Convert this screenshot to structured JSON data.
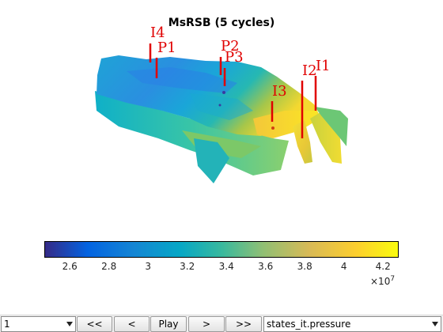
{
  "figure": {
    "title": "MsRSB (5 cycles)",
    "wells": [
      {
        "name": "I4"
      },
      {
        "name": "P1"
      },
      {
        "name": "P2"
      },
      {
        "name": "P3"
      },
      {
        "name": "I3"
      },
      {
        "name": "I2"
      },
      {
        "name": "I1"
      }
    ],
    "well_color": "#e00000"
  },
  "colorbar": {
    "colormap": "parula",
    "range": [
      2.47,
      4.28
    ],
    "ticks": [
      "2.6",
      "2.8",
      "3",
      "3.2",
      "3.4",
      "3.6",
      "3.8",
      "4",
      "4.2"
    ],
    "exponent_base": "×10",
    "exponent_power": "7"
  },
  "controls": {
    "step_select_value": "1",
    "first_label": "<<",
    "prev_label": "<",
    "play_label": "Play",
    "next_label": ">",
    "last_label": ">>",
    "field_select_value": "states_it.pressure"
  }
}
